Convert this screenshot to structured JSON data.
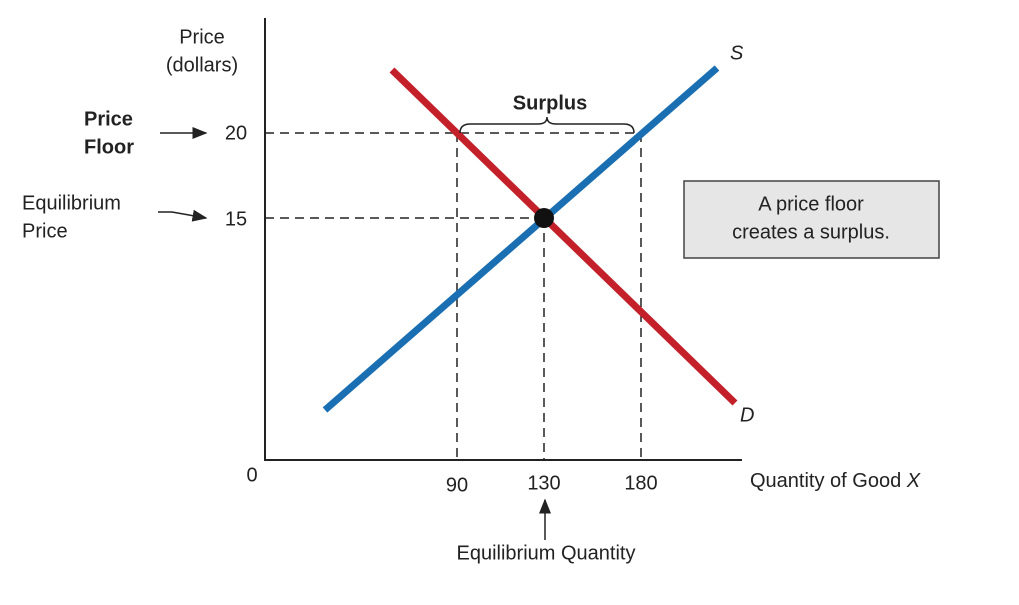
{
  "axes": {
    "y_label": [
      "Price",
      "(dollars)"
    ],
    "x_label": "Quantity of Good",
    "x_label_var": "X",
    "origin": "0"
  },
  "y_ticks": [
    "20",
    "15"
  ],
  "x_ticks": [
    "90",
    "130",
    "180"
  ],
  "curves": {
    "supply": "S",
    "demand": "D"
  },
  "annotations": {
    "price_floor": [
      "Price",
      "Floor"
    ],
    "equilibrium_price": [
      "Equilibrium",
      "Price"
    ],
    "equilibrium_quantity": "Equilibrium Quantity",
    "surplus": "Surplus"
  },
  "note": [
    "A price floor",
    "creates a surplus."
  ]
}
